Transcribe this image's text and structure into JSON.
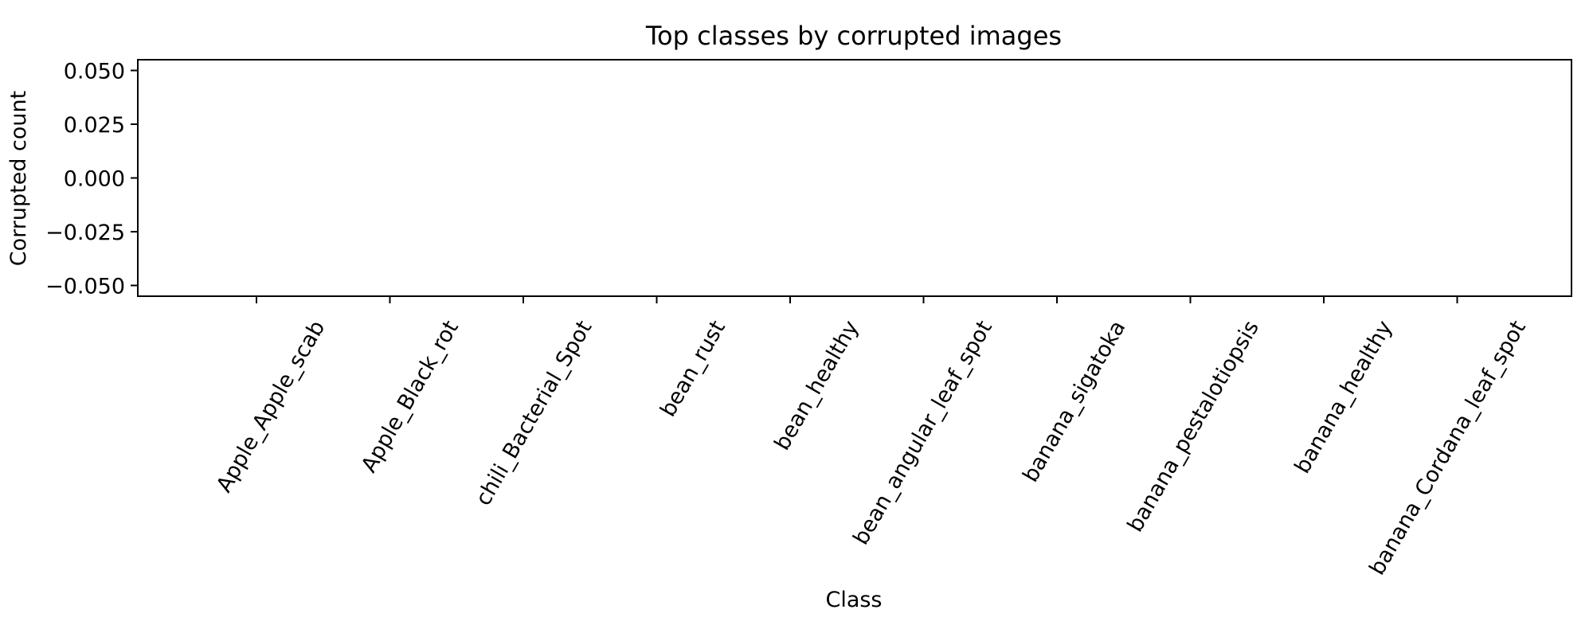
{
  "chart_data": {
    "type": "bar",
    "title": "Top classes by corrupted images",
    "xlabel": "Class",
    "ylabel": "Corrupted count",
    "categories": [
      "Apple_Apple_scab",
      "Apple_Black_rot",
      "chili_Bacterial_Spot",
      "bean_rust",
      "bean_healthy",
      "bean_angular_leaf_spot",
      "banana_sigatoka",
      "banana_pestalotiopsis",
      "banana_healthy",
      "banana_Cordana_leaf_spot"
    ],
    "values": [
      0,
      0,
      0,
      0,
      0,
      0,
      0,
      0,
      0,
      0
    ],
    "ylim": [
      -0.055,
      0.055
    ],
    "yticks": [
      0.05,
      0.025,
      0.0,
      -0.025,
      -0.05
    ],
    "ytick_labels": [
      "0.050",
      "0.025",
      "0.000",
      "−0.025",
      "−0.050"
    ],
    "grid": false,
    "legend": "none",
    "colors": {
      "bar": "#1f77b4",
      "axis": "#000000",
      "background": "#ffffff"
    }
  }
}
